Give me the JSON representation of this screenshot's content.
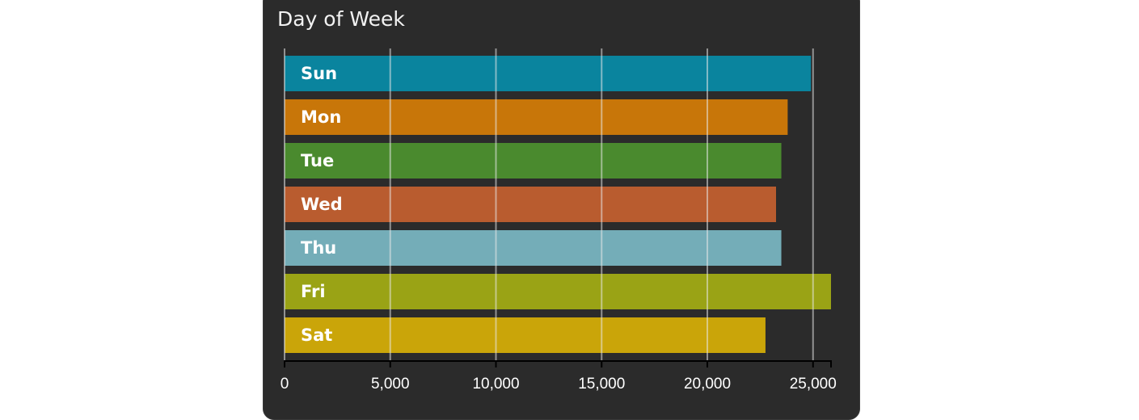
{
  "panel": {
    "title": "Day of Week"
  },
  "chart_data": {
    "type": "bar",
    "orientation": "horizontal",
    "title": "Day of Week",
    "categories": [
      "Sun",
      "Mon",
      "Tue",
      "Wed",
      "Thu",
      "Fri",
      "Sat"
    ],
    "values": [
      24900,
      23800,
      23500,
      23250,
      23500,
      25850,
      22750
    ],
    "colors": [
      "#0a849e",
      "#c87609",
      "#4a8a2e",
      "#b95c2f",
      "#74adb8",
      "#9aa315",
      "#caa509"
    ],
    "xlim": [
      0,
      25850
    ],
    "xticks": [
      0,
      5000,
      10000,
      15000,
      20000,
      25000
    ],
    "xtick_labels": [
      "0",
      "5,000",
      "10,000",
      "15,000",
      "20,000",
      "25,000"
    ],
    "grid": true,
    "grid_color": "#e8e8e8",
    "axis_color": "#000000",
    "background": "#2b2b2b",
    "xlabel": "",
    "ylabel": ""
  }
}
